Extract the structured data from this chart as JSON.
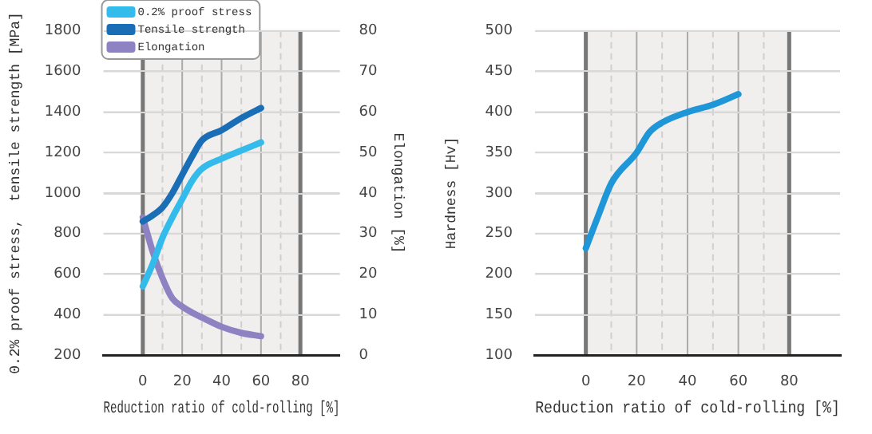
{
  "chart_data": [
    {
      "type": "line",
      "xlabel": "Reduction ratio of cold-rolling [%]",
      "ylabel": "0.2% proof stress,  tensile strength [MPa]",
      "y2label": "Elongation [%]",
      "x": [
        0,
        5,
        10,
        15,
        20,
        25,
        30,
        40,
        50,
        60
      ],
      "series": [
        {
          "name": "0.2% proof stress",
          "color": "#33bbec",
          "values": [
            540,
            650,
            780,
            880,
            970,
            1060,
            1120,
            1170,
            1210,
            1250
          ]
        },
        {
          "name": "Tensile strength",
          "color": "#1a6eb6",
          "values": [
            860,
            890,
            930,
            1000,
            1090,
            1180,
            1260,
            1310,
            1370,
            1420
          ]
        },
        {
          "name": "Elongation",
          "color": "#8f82c2",
          "axis": "y2",
          "values": [
            34,
            25.6,
            19,
            14,
            12,
            10.5,
            9.3,
            7,
            5.5,
            4.7
          ]
        }
      ],
      "xlim": [
        -20,
        100
      ],
      "xticks": [
        0,
        {
          "value": 10,
          "label": null
        },
        20,
        {
          "value": 30,
          "label": null
        },
        40,
        {
          "value": 50,
          "label": null
        },
        60,
        {
          "value": 70,
          "label": null
        },
        80
      ],
      "ylim": [
        200,
        1800
      ],
      "yticks": [
        200,
        400,
        600,
        800,
        1000,
        1200,
        1400,
        1600,
        1800
      ],
      "y2lim": [
        0,
        80
      ],
      "y2ticks": [
        0,
        10,
        20,
        30,
        40,
        50,
        60,
        70,
        80
      ],
      "bands": [
        {
          "axis": "x",
          "from": 0,
          "to": 80,
          "color": "#f0efee"
        }
      ],
      "grid": true,
      "legend": "top left",
      "marker": "none",
      "line_style": "solid"
    },
    {
      "type": "line",
      "xlabel": "Reduction ratio of cold-rolling [%]",
      "ylabel": "Hardness [Hv]",
      "x": [
        0,
        5,
        10,
        20,
        25,
        30,
        40,
        50,
        60
      ],
      "series": [
        {
          "color": "#1e96d8",
          "values": [
            232,
            273,
            312,
            350,
            375,
            387,
            400,
            409,
            422
          ]
        }
      ],
      "xlim": [
        -20,
        100
      ],
      "xticks": [
        0,
        {
          "value": 10,
          "label": null
        },
        20,
        {
          "value": 30,
          "label": null
        },
        40,
        {
          "value": 50,
          "label": null
        },
        60,
        {
          "value": 70,
          "label": null
        },
        80
      ],
      "ylim": [
        100,
        500
      ],
      "yticks": [
        100,
        150,
        200,
        250,
        300,
        350,
        400,
        450,
        500
      ],
      "bands": [
        {
          "axis": "x",
          "from": 0,
          "to": 80,
          "color": "#f0efee"
        }
      ],
      "grid": true,
      "legend": false,
      "marker": "none",
      "line_style": "solid"
    }
  ]
}
